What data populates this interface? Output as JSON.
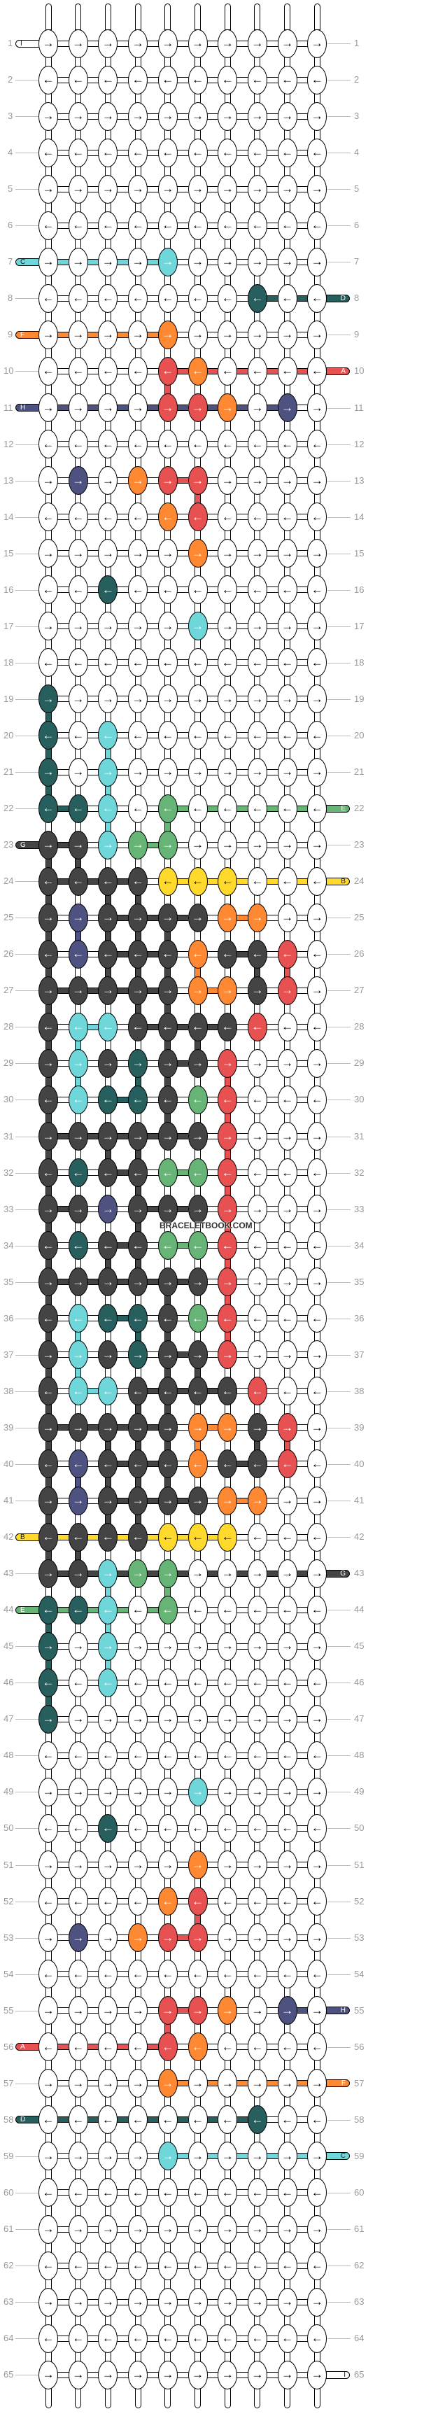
{
  "watermark": "BRACELETBOOK.COM",
  "colors": {
    "W": "#ffffff",
    "K": "#444444",
    "N": "#4e5280",
    "C": "#6fd6d9",
    "T": "#275e5e",
    "O": "#ff8833",
    "R": "#e85151",
    "G": "#66b577",
    "Y": "#ffd92b"
  },
  "rows": [
    {
      "label": "1",
      "dir": "→",
      "knots": "WWWWWWWWWW"
    },
    {
      "label": "2",
      "dir": "←",
      "knots": "WWWWWWWWWW"
    },
    {
      "label": "3",
      "dir": "→",
      "knots": "WWWWWWWWWW"
    },
    {
      "label": "4",
      "dir": "←",
      "knots": "WWWWWWWWWW"
    },
    {
      "label": "5",
      "dir": "→",
      "knots": "WWWWWWWWWW"
    },
    {
      "label": "6",
      "dir": "←",
      "knots": "WWWWWWWWWW"
    },
    {
      "label": "7",
      "dir": "→",
      "knots": "WWWWCWWWWW"
    },
    {
      "label": "8",
      "dir": "←",
      "knots": "WWWWWWWTWW"
    },
    {
      "label": "9",
      "dir": "→",
      "knots": "WWWWOWWWWW"
    },
    {
      "label": "10",
      "dir": "←",
      "knots": "WWWWROWWWW"
    },
    {
      "label": "11",
      "dir": "→",
      "knots": "WWWWRROWNW"
    },
    {
      "label": "12",
      "dir": "←",
      "knots": "WWWWWWWWWW"
    },
    {
      "label": "13",
      "dir": "→",
      "knots": "WNWORRWWWW"
    },
    {
      "label": "14",
      "dir": "←",
      "knots": "WWWWORWWWW"
    },
    {
      "label": "15",
      "dir": "→",
      "knots": "WWWWWOWWWW"
    },
    {
      "label": "16",
      "dir": "←",
      "knots": "WWTWWWWWWW"
    },
    {
      "label": "17",
      "dir": "→",
      "knots": "WWWWWCWWWW"
    },
    {
      "label": "18",
      "dir": "←",
      "knots": "WWWWWWWWWW"
    },
    {
      "label": "19",
      "dir": "→",
      "knots": "TWWWWWWWWW"
    },
    {
      "label": "20",
      "dir": "←",
      "knots": "TWCWWWWWWW"
    },
    {
      "label": "21",
      "dir": "→",
      "knots": "TWCWWWWWWW"
    },
    {
      "label": "22",
      "dir": "←",
      "knots": "TTCWGWWWWW"
    },
    {
      "label": "23",
      "dir": "→",
      "knots": "KKCGGWWWWW"
    },
    {
      "label": "24",
      "dir": "←",
      "knots": "KKKKYYYWWW"
    },
    {
      "label": "25",
      "dir": "→",
      "knots": "KNKKKKOOWW"
    },
    {
      "label": "26",
      "dir": "←",
      "knots": "KNKKKOKKRW"
    },
    {
      "label": "27",
      "dir": "→",
      "knots": "KKKKKOOKRW"
    },
    {
      "label": "28",
      "dir": "←",
      "knots": "KCCKKKKRWW"
    },
    {
      "label": "29",
      "dir": "→",
      "knots": "KCKTKKRWWW"
    },
    {
      "label": "30",
      "dir": "←",
      "knots": "KCTTKGRWWW"
    },
    {
      "label": "31",
      "dir": "→",
      "knots": "KKKKKKRWWW"
    },
    {
      "label": "32",
      "dir": "←",
      "knots": "KTKKGGRWWW"
    },
    {
      "label": "33",
      "dir": "→",
      "knots": "KKNKKKRWWW"
    },
    {
      "label": "34",
      "dir": "←",
      "knots": "KTKKGGRWWW"
    },
    {
      "label": "35",
      "dir": "→",
      "knots": "KKKKKKRWWW"
    },
    {
      "label": "36",
      "dir": "←",
      "knots": "KCTTKGRWWW"
    },
    {
      "label": "37",
      "dir": "→",
      "knots": "KCKTKKRWWW"
    },
    {
      "label": "38",
      "dir": "←",
      "knots": "KCCKKKKRWW"
    },
    {
      "label": "39",
      "dir": "→",
      "knots": "KKKKKOOKRW"
    },
    {
      "label": "40",
      "dir": "←",
      "knots": "KNKKKOKKRW"
    },
    {
      "label": "41",
      "dir": "→",
      "knots": "KNKKKKOOWW"
    },
    {
      "label": "42",
      "dir": "←",
      "knots": "KKKKYYYWWW"
    },
    {
      "label": "43",
      "dir": "→",
      "knots": "KKCGGWWWWW"
    },
    {
      "label": "44",
      "dir": "←",
      "knots": "TTCWGWWWWW"
    },
    {
      "label": "45",
      "dir": "→",
      "knots": "TWCWWWWWWW"
    },
    {
      "label": "46",
      "dir": "←",
      "knots": "TWCWWWWWWW"
    },
    {
      "label": "47",
      "dir": "→",
      "knots": "TWWWWWWWWW"
    },
    {
      "label": "48",
      "dir": "←",
      "knots": "WWWWWWWWWW"
    },
    {
      "label": "49",
      "dir": "→",
      "knots": "WWWWWCWWWW"
    },
    {
      "label": "50",
      "dir": "←",
      "knots": "WWTWWWWWWW"
    },
    {
      "label": "51",
      "dir": "→",
      "knots": "WWWWWOWWWW"
    },
    {
      "label": "52",
      "dir": "←",
      "knots": "WWWWORWWWW"
    },
    {
      "label": "53",
      "dir": "→",
      "knots": "WNWORRWWWW"
    },
    {
      "label": "54",
      "dir": "←",
      "knots": "WWWWWWWWWW"
    },
    {
      "label": "55",
      "dir": "→",
      "knots": "WWWWRROWNW"
    },
    {
      "label": "56",
      "dir": "←",
      "knots": "WWWWROWWWW"
    },
    {
      "label": "57",
      "dir": "→",
      "knots": "WWWWOWWWWW"
    },
    {
      "label": "58",
      "dir": "←",
      "knots": "WWWWWWWTWW"
    },
    {
      "label": "59",
      "dir": "→",
      "knots": "WWWWCWWWWW"
    },
    {
      "label": "60",
      "dir": "←",
      "knots": "WWWWWWWWWW"
    },
    {
      "label": "61",
      "dir": "→",
      "knots": "WWWWWWWWWW"
    },
    {
      "label": "62",
      "dir": "←",
      "knots": "WWWWWWWWWW"
    },
    {
      "label": "63",
      "dir": "→",
      "knots": "WWWWWWWWWW"
    },
    {
      "label": "64",
      "dir": "←",
      "knots": "WWWWWWWWWW"
    },
    {
      "label": "65",
      "dir": "→",
      "knots": "WWWWWWWWWW"
    }
  ],
  "strings": {
    "left": [
      {
        "row": 1,
        "letter": "I",
        "color": "W"
      },
      {
        "row": 7,
        "letter": "C",
        "color": "C"
      },
      {
        "row": 9,
        "letter": "F",
        "color": "O"
      },
      {
        "row": 11,
        "letter": "H",
        "color": "N"
      },
      {
        "row": 23,
        "letter": "G",
        "color": "K"
      },
      {
        "row": 42,
        "letter": "B",
        "color": "Y"
      },
      {
        "row": 44,
        "letter": "E",
        "color": "G"
      },
      {
        "row": 56,
        "letter": "A",
        "color": "R"
      },
      {
        "row": 58,
        "letter": "D",
        "color": "T"
      }
    ],
    "right": [
      {
        "row": 8,
        "letter": "D",
        "color": "T"
      },
      {
        "row": 10,
        "letter": "A",
        "color": "R"
      },
      {
        "row": 22,
        "letter": "E",
        "color": "G"
      },
      {
        "row": 24,
        "letter": "B",
        "color": "Y"
      },
      {
        "row": 43,
        "letter": "G",
        "color": "K"
      },
      {
        "row": 55,
        "letter": "H",
        "color": "N"
      },
      {
        "row": 57,
        "letter": "F",
        "color": "O"
      },
      {
        "row": 59,
        "letter": "C",
        "color": "C"
      },
      {
        "row": 65,
        "letter": "I",
        "color": "W"
      }
    ]
  }
}
